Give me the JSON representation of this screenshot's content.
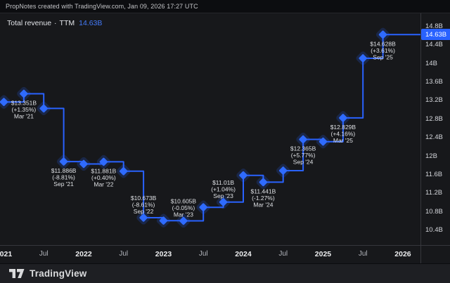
{
  "header": {
    "attribution": "PropNotes created with TradingView.com, Jan 09, 2026 17:27 UTC"
  },
  "legend": {
    "title": "Total revenue",
    "separator": "·",
    "mode": "TTM",
    "value": "14.63B"
  },
  "footer": {
    "brand": "TradingView"
  },
  "colors": {
    "line": "#2962FF",
    "marker": "#2F6BFF",
    "marker_glow": "rgba(41,98,255,0.20)",
    "point_label_text": "#DEE0E4",
    "current_label_bg": "#2962FF",
    "legend_value_blue": "#447BFB"
  },
  "chart_data": {
    "type": "line",
    "subtype": "step-with-diamond-markers",
    "title": "Total revenue TTM",
    "unit": "USD billions",
    "grid": false,
    "legend_position": "top-left",
    "current_value": 14.63,
    "current_value_label": "14.63B",
    "y_axis": {
      "min": 10.4,
      "max": 14.8,
      "tick_step": 0.4,
      "side": "right",
      "ticks": [
        {
          "value": 14.8,
          "label": "14.8B"
        },
        {
          "value": 14.4,
          "label": "14.4B"
        },
        {
          "value": 14.0,
          "label": "14B"
        },
        {
          "value": 13.6,
          "label": "13.6B"
        },
        {
          "value": 13.2,
          "label": "13.2B"
        },
        {
          "value": 12.8,
          "label": "12.8B"
        },
        {
          "value": 12.4,
          "label": "12.4B"
        },
        {
          "value": 12.0,
          "label": "12B"
        },
        {
          "value": 11.6,
          "label": "11.6B"
        },
        {
          "value": 11.2,
          "label": "11.2B"
        },
        {
          "value": 10.8,
          "label": "10.8B"
        },
        {
          "value": 10.4,
          "label": "10.4B"
        }
      ]
    },
    "x_axis": {
      "side": "bottom",
      "ticks": [
        {
          "label": "2021",
          "month_index": 0,
          "major": true
        },
        {
          "label": "Jul",
          "month_index": 6,
          "major": false
        },
        {
          "label": "2022",
          "month_index": 12,
          "major": true
        },
        {
          "label": "Jul",
          "month_index": 18,
          "major": false
        },
        {
          "label": "2023",
          "month_index": 24,
          "major": true
        },
        {
          "label": "Jul",
          "month_index": 30,
          "major": false
        },
        {
          "label": "2024",
          "month_index": 36,
          "major": true
        },
        {
          "label": "Jul",
          "month_index": 42,
          "major": false
        },
        {
          "label": "2025",
          "month_index": 48,
          "major": true
        },
        {
          "label": "Jul",
          "month_index": 54,
          "major": false
        },
        {
          "label": "2026",
          "month_index": 60,
          "major": true
        }
      ]
    },
    "points": [
      {
        "period": "Dec '20",
        "month_index": 0,
        "value": 13.173
      },
      {
        "period": "Mar '21",
        "month_index": 3,
        "value": 13.351,
        "label": {
          "value_text": "$13.351B",
          "change_text": "(+1.35%)",
          "period_text": "Mar '21",
          "position": "below"
        }
      },
      {
        "period": "Jun '21",
        "month_index": 6,
        "value": 13.034
      },
      {
        "period": "Sep '21",
        "month_index": 9,
        "value": 11.886,
        "label": {
          "value_text": "$11.886B",
          "change_text": "(-8.81%)",
          "period_text": "Sep '21",
          "position": "below"
        }
      },
      {
        "period": "Dec '21",
        "month_index": 12,
        "value": 11.834
      },
      {
        "period": "Mar '22",
        "month_index": 15,
        "value": 11.881,
        "label": {
          "value_text": "$11.881B",
          "change_text": "(+0.40%)",
          "period_text": "Mar '22",
          "position": "below"
        }
      },
      {
        "period": "Jun '22",
        "month_index": 18,
        "value": 11.678
      },
      {
        "period": "Sep '22",
        "month_index": 21,
        "value": 10.673,
        "label": {
          "value_text": "$10.673B",
          "change_text": "(-8.61%)",
          "period_text": "Sep '22",
          "position": "above"
        }
      },
      {
        "period": "Dec '22",
        "month_index": 24,
        "value": 10.61
      },
      {
        "period": "Mar '23",
        "month_index": 27,
        "value": 10.605,
        "label": {
          "value_text": "$10.605B",
          "change_text": "(-0.05%)",
          "period_text": "Mar '23",
          "position": "above"
        }
      },
      {
        "period": "Jun '23",
        "month_index": 30,
        "value": 10.897
      },
      {
        "period": "Sep '23",
        "month_index": 33,
        "value": 11.01,
        "label": {
          "value_text": "$11.01B",
          "change_text": "(+1.04%)",
          "period_text": "Sep '23",
          "position": "above"
        }
      },
      {
        "period": "Dec '23",
        "month_index": 36,
        "value": 11.588
      },
      {
        "period": "Mar '24",
        "month_index": 39,
        "value": 11.441,
        "label": {
          "value_text": "$11.441B",
          "change_text": "(-1.27%)",
          "period_text": "Mar '24",
          "position": "below"
        }
      },
      {
        "period": "Jun '24",
        "month_index": 42,
        "value": 11.69
      },
      {
        "period": "Sep '24",
        "month_index": 45,
        "value": 12.365,
        "label": {
          "value_text": "$12.365B",
          "change_text": "(+5.77%)",
          "period_text": "Sep '24",
          "position": "below"
        }
      },
      {
        "period": "Dec '24",
        "month_index": 48,
        "value": 12.317
      },
      {
        "period": "Mar '25",
        "month_index": 51,
        "value": 12.829,
        "label": {
          "value_text": "$12.829B",
          "change_text": "(+4.16%)",
          "period_text": "Mar '25",
          "position": "below"
        }
      },
      {
        "period": "Jun '25",
        "month_index": 54,
        "value": 14.118
      },
      {
        "period": "Sep '25",
        "month_index": 57,
        "value": 14.628,
        "label": {
          "value_text": "$14.628B",
          "change_text": "(+3.61%)",
          "period_text": "Sep '25",
          "position": "below"
        }
      }
    ]
  }
}
